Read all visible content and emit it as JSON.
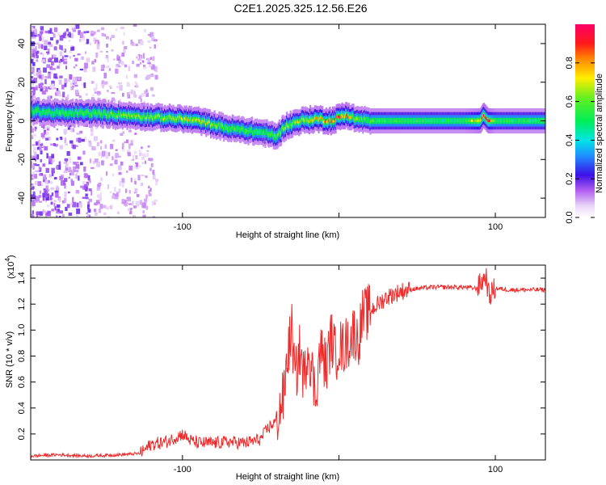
{
  "title": "C2E1.2025.325.12.56.E26",
  "colors": {
    "snr_line": "#ee2b2b",
    "axis": "#000000",
    "background": "#ffffff"
  },
  "chart_data": [
    {
      "type": "heatmap",
      "name": "spectrogram",
      "xlabel": "Height of straight line (km)",
      "ylabel": "Frequency (Hz)",
      "xlim": [
        -197,
        132
      ],
      "ylim": [
        -50,
        50
      ],
      "xticks": [
        -100,
        0,
        100
      ],
      "xtick_labels": [
        "-100",
        "",
        "100"
      ],
      "yticks": [
        -40,
        -20,
        0,
        20,
        40
      ],
      "ytick_labels": [
        "-40",
        "-20",
        "0",
        "20",
        "40"
      ],
      "colorbar": {
        "label": "Normalized spectral amplitude",
        "range": [
          0,
          1
        ],
        "ticks": [
          0,
          0.2,
          0.4,
          0.6,
          0.8
        ],
        "tick_labels": [
          "0.0",
          "0.2",
          "0.4",
          "0.6",
          "0.8"
        ],
        "colormap": "rainbow: white-violet-purple-blue-cyan-green-yellow-orange-red-magenta"
      },
      "ridge": {
        "description": "Frequency of peak spectral amplitude vs height",
        "x": [
          -195,
          -180,
          -160,
          -140,
          -120,
          -100,
          -90,
          -80,
          -70,
          -60,
          -50,
          -40,
          -35,
          -25,
          -15,
          -5,
          0,
          5,
          10,
          20,
          40,
          60,
          80,
          90,
          92,
          95,
          100,
          120,
          130
        ],
        "frequency": [
          5,
          4,
          4,
          3,
          2,
          1,
          0,
          -2,
          -4,
          -5,
          -6,
          -8,
          -3,
          0,
          1,
          0,
          2,
          3,
          1,
          0,
          0,
          0,
          0,
          0,
          3,
          0,
          0,
          0,
          0
        ],
        "amplitude": [
          0.5,
          0.5,
          0.55,
          0.6,
          0.6,
          0.7,
          0.7,
          0.6,
          0.55,
          0.55,
          0.5,
          0.6,
          0.6,
          0.65,
          0.75,
          0.8,
          0.85,
          0.8,
          0.6,
          0.55,
          0.5,
          0.5,
          0.5,
          0.8,
          0.9,
          0.9,
          0.5,
          0.5,
          0.5
        ]
      }
    },
    {
      "type": "line",
      "name": "snr",
      "xlabel": "Height of straight line (km)",
      "ylabel": "SNR (10 * v/v)",
      "y_multiplier": "(x10^4)",
      "y_multiplier_base": "(x10",
      "y_multiplier_exp": "4",
      "y_multiplier_close": ")",
      "xlim": [
        -197,
        132
      ],
      "ylim": [
        0,
        1.5
      ],
      "xticks": [
        -100,
        0,
        100
      ],
      "xtick_labels": [
        "-100",
        "",
        "100"
      ],
      "yticks": [
        0.2,
        0.4,
        0.6,
        0.8,
        1.0,
        1.2,
        1.4
      ],
      "ytick_labels": [
        "0.2",
        "0.4",
        "0.6",
        "0.8",
        "1.0",
        "1.2",
        "1.4"
      ],
      "series": [
        {
          "name": "SNR",
          "x": [
            -197,
            -180,
            -160,
            -140,
            -127,
            -120,
            -110,
            -100,
            -95,
            -90,
            -80,
            -70,
            -60,
            -50,
            -45,
            -40,
            -35,
            -33,
            -30,
            -28,
            -25,
            -22,
            -20,
            -18,
            -15,
            -12,
            -10,
            -8,
            -5,
            -2,
            0,
            2,
            5,
            8,
            10,
            12,
            15,
            20,
            25,
            30,
            40,
            50,
            60,
            70,
            80,
            88,
            92,
            94,
            96,
            98,
            100,
            110,
            120,
            132
          ],
          "y": [
            0.03,
            0.04,
            0.03,
            0.04,
            0.05,
            0.12,
            0.14,
            0.2,
            0.15,
            0.13,
            0.13,
            0.14,
            0.13,
            0.16,
            0.25,
            0.3,
            0.5,
            0.8,
            1.0,
            0.6,
            0.85,
            0.6,
            0.9,
            0.75,
            0.5,
            0.85,
            0.8,
            0.7,
            0.95,
            0.8,
            0.9,
            0.85,
            0.9,
            0.95,
            1.0,
            0.9,
            1.1,
            1.15,
            1.2,
            1.25,
            1.3,
            1.32,
            1.33,
            1.33,
            1.33,
            1.32,
            1.38,
            1.42,
            1.25,
            1.3,
            1.32,
            1.31,
            1.31,
            1.31
          ]
        }
      ]
    }
  ]
}
